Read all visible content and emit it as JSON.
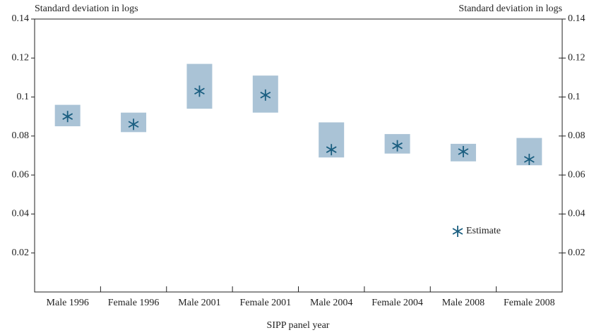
{
  "chart_data": {
    "type": "interval",
    "y_label": "Standard deviation in logs",
    "y2_label": "Standard deviation in logs",
    "x_label": "SIPP panel year",
    "categories": [
      "Male 1996",
      "Female 1996",
      "Male 2001",
      "Female 2001",
      "Male 2004",
      "Female 2004",
      "Male 2008",
      "Female 2008"
    ],
    "series": [
      {
        "name": "Estimate",
        "color": "#1a5e80",
        "values": [
          0.09,
          0.086,
          0.103,
          0.101,
          0.073,
          0.075,
          0.072,
          0.068
        ]
      }
    ],
    "lower": [
      0.085,
      0.082,
      0.094,
      0.092,
      0.069,
      0.071,
      0.067,
      0.065
    ],
    "upper": [
      0.096,
      0.092,
      0.117,
      0.111,
      0.087,
      0.081,
      0.076,
      0.079
    ],
    "range_color": "#aac3d6",
    "ylim": [
      0,
      0.14
    ],
    "yticks": [
      0.02,
      0.04,
      0.06,
      0.08,
      0.1,
      0.12,
      0.14
    ],
    "y2lim": [
      0,
      0.14
    ],
    "y2ticks": [
      0.02,
      0.04,
      0.06,
      0.08,
      0.1,
      0.12,
      0.14
    ],
    "legend": "lower right"
  }
}
